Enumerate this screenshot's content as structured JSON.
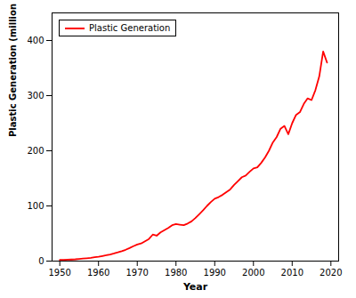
{
  "chart_data": {
    "type": "line",
    "x": [
      1950,
      1951,
      1952,
      1953,
      1954,
      1955,
      1956,
      1957,
      1958,
      1959,
      1960,
      1961,
      1962,
      1963,
      1964,
      1965,
      1966,
      1967,
      1968,
      1969,
      1970,
      1971,
      1972,
      1973,
      1974,
      1975,
      1976,
      1977,
      1978,
      1979,
      1980,
      1981,
      1982,
      1983,
      1984,
      1985,
      1986,
      1987,
      1988,
      1989,
      1990,
      1991,
      1992,
      1993,
      1994,
      1995,
      1996,
      1997,
      1998,
      1999,
      2000,
      2001,
      2002,
      2003,
      2004,
      2005,
      2006,
      2007,
      2008,
      2009,
      2010,
      2011,
      2012,
      2013,
      2014,
      2015,
      2016,
      2017,
      2018,
      2019
    ],
    "series": [
      {
        "name": "Plastic Generation",
        "color": "#ff0000",
        "values": [
          2,
          2.2,
          2.5,
          2.8,
          3.2,
          3.8,
          4.5,
          5.2,
          6.0,
          7.0,
          8.0,
          9.2,
          10.5,
          12.0,
          13.8,
          15.8,
          18.0,
          20.5,
          23.5,
          27.0,
          30.0,
          32.0,
          36.0,
          40.0,
          48.0,
          46.0,
          52.0,
          56.0,
          60.0,
          65.0,
          67.0,
          66.0,
          65.0,
          68.0,
          72.0,
          78.0,
          85.0,
          92.0,
          100.0,
          107.0,
          113.0,
          116.0,
          120.0,
          125.0,
          130.0,
          138.0,
          145.0,
          152.0,
          155.0,
          162.0,
          168.0,
          170.0,
          178.0,
          188.0,
          200.0,
          215.0,
          225.0,
          240.0,
          245.0,
          230.0,
          250.0,
          265.0,
          270.0,
          285.0,
          295.0,
          292.0,
          310.0,
          335.0,
          380.0,
          360.0
        ]
      }
    ],
    "xlabel": "Year",
    "ylabel": "Plastic Generation (million metric tons/ year)",
    "xlim": [
      1948,
      2022
    ],
    "ylim": [
      0,
      450
    ],
    "xticks": [
      1950,
      1960,
      1970,
      1980,
      1990,
      2000,
      2010,
      2020
    ],
    "yticks": [
      0,
      100,
      200,
      300,
      400
    ],
    "legend": "upper left",
    "grid": false
  }
}
